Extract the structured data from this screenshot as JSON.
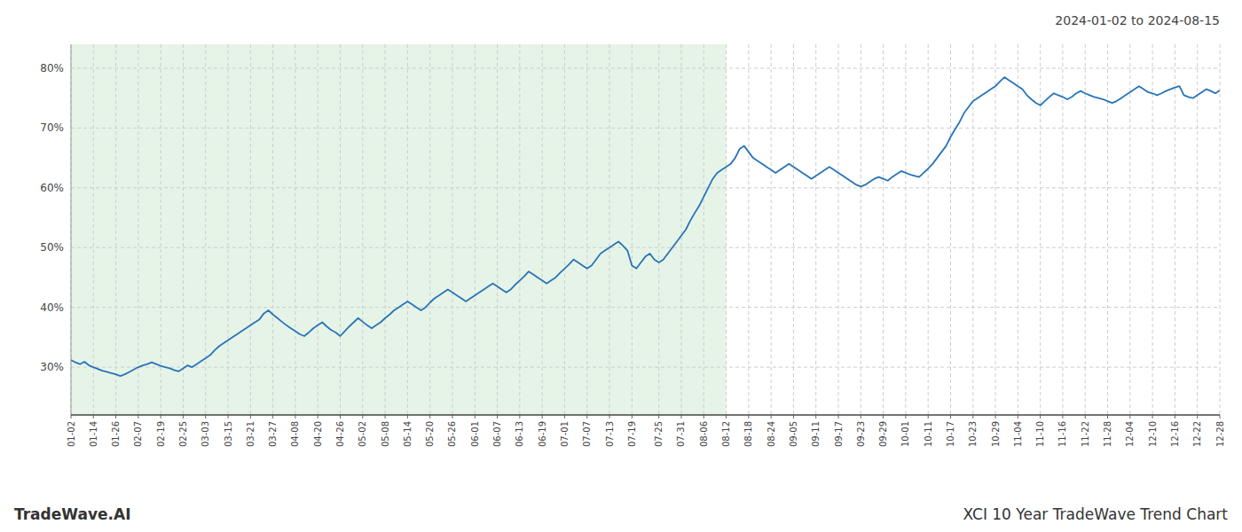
{
  "chart_data": {
    "type": "line",
    "title": "2024-01-02 to 2024-08-15",
    "annotations": [
      "TradeWave.AI",
      "XCI 10 Year TradeWave Trend Chart"
    ],
    "color": "#2874b8",
    "grid": true,
    "shaded_range": {
      "from": "01-02",
      "to": "08-12",
      "color": "#c8e6c9"
    },
    "ylim": [
      22,
      84
    ],
    "yticks": [
      {
        "value": 30,
        "label": "30%"
      },
      {
        "value": 40,
        "label": "40%"
      },
      {
        "value": 50,
        "label": "50%"
      },
      {
        "value": 60,
        "label": "60%"
      },
      {
        "value": 70,
        "label": "70%"
      },
      {
        "value": 80,
        "label": "80%"
      }
    ],
    "categories": [
      "01-02",
      null,
      null,
      null,
      null,
      "01-14",
      null,
      null,
      null,
      null,
      "01-26",
      null,
      null,
      null,
      null,
      "02-07",
      null,
      null,
      null,
      null,
      "02-19",
      null,
      null,
      null,
      null,
      "02-25",
      null,
      null,
      null,
      null,
      "03-03",
      null,
      null,
      null,
      null,
      "03-15",
      null,
      null,
      null,
      null,
      "03-21",
      null,
      null,
      null,
      null,
      "03-27",
      null,
      null,
      null,
      null,
      "04-08",
      null,
      null,
      null,
      null,
      "04-20",
      null,
      null,
      null,
      null,
      "04-26",
      null,
      null,
      null,
      null,
      "05-02",
      null,
      null,
      null,
      null,
      "05-08",
      null,
      null,
      null,
      null,
      "05-14",
      null,
      null,
      null,
      null,
      "05-20",
      null,
      null,
      null,
      null,
      "05-26",
      null,
      null,
      null,
      null,
      "06-01",
      null,
      null,
      null,
      null,
      "06-07",
      null,
      null,
      null,
      null,
      "06-13",
      null,
      null,
      null,
      null,
      "06-19",
      null,
      null,
      null,
      null,
      "07-01",
      null,
      null,
      null,
      null,
      "07-07",
      null,
      null,
      null,
      null,
      "07-13",
      null,
      null,
      null,
      null,
      "07-19",
      null,
      null,
      null,
      null,
      null,
      "07-25",
      null,
      null,
      null,
      null,
      "07-31",
      null,
      null,
      null,
      null,
      "08-06",
      null,
      null,
      null,
      null,
      "08-12",
      null,
      null,
      null,
      null,
      "08-18",
      null,
      null,
      null,
      null,
      "08-24",
      null,
      null,
      null,
      null,
      "09-05",
      null,
      null,
      null,
      null,
      "09-11",
      null,
      null,
      null,
      null,
      "09-17",
      null,
      null,
      null,
      null,
      "09-23",
      null,
      null,
      null,
      null,
      "09-29",
      null,
      null,
      null,
      null,
      "10-01",
      null,
      null,
      null,
      null,
      "10-11",
      null,
      null,
      null,
      null,
      "10-17",
      null,
      null,
      null,
      null,
      "10-23",
      null,
      null,
      null,
      null,
      "10-29",
      null,
      null,
      null,
      null,
      "11-04",
      null,
      null,
      null,
      null,
      "11-10",
      null,
      null,
      null,
      null,
      "11-16",
      null,
      null,
      null,
      null,
      "11-22",
      null,
      null,
      null,
      null,
      "11-28",
      null,
      null,
      null,
      null,
      "12-04",
      null,
      null,
      null,
      null,
      "12-10",
      null,
      null,
      null,
      null,
      "12-16",
      null,
      null,
      null,
      null,
      "12-22",
      null,
      null,
      null,
      null,
      "12-28"
    ],
    "values": [
      31.2,
      30.8,
      30.5,
      30.9,
      30.3,
      30.0,
      29.7,
      29.4,
      29.2,
      29.0,
      28.8,
      28.5,
      28.8,
      29.2,
      29.6,
      30.0,
      30.3,
      30.5,
      30.8,
      30.5,
      30.2,
      30.0,
      29.8,
      29.5,
      29.3,
      29.8,
      30.3,
      30.0,
      30.5,
      31.0,
      31.5,
      32.0,
      32.8,
      33.5,
      34.0,
      34.5,
      35.0,
      35.5,
      36.0,
      36.5,
      37.0,
      37.5,
      38.0,
      39.0,
      39.5,
      38.8,
      38.2,
      37.6,
      37.0,
      36.5,
      36.0,
      35.5,
      35.2,
      35.8,
      36.5,
      37.0,
      37.5,
      36.8,
      36.2,
      35.8,
      35.2,
      36.0,
      36.8,
      37.5,
      38.2,
      37.6,
      37.0,
      36.5,
      37.0,
      37.5,
      38.2,
      38.8,
      39.5,
      40.0,
      40.5,
      41.0,
      40.5,
      40.0,
      39.5,
      40.0,
      40.8,
      41.5,
      42.0,
      42.5,
      43.0,
      42.5,
      42.0,
      41.5,
      41.0,
      41.5,
      42.0,
      42.5,
      43.0,
      43.5,
      44.0,
      43.5,
      43.0,
      42.5,
      43.0,
      43.8,
      44.5,
      45.2,
      46.0,
      45.5,
      45.0,
      44.5,
      44.0,
      44.5,
      45.0,
      45.8,
      46.5,
      47.2,
      48.0,
      47.5,
      47.0,
      46.5,
      47.0,
      48.0,
      49.0,
      49.5,
      50.0,
      50.5,
      51.0,
      50.3,
      49.5,
      47.0,
      46.5,
      47.5,
      48.5,
      49.0,
      48.0,
      47.5,
      48.0,
      49.0,
      50.0,
      51.0,
      52.0,
      53.0,
      54.5,
      55.8,
      57.0,
      58.5,
      60.0,
      61.5,
      62.5,
      63.0,
      63.5,
      64.0,
      65.0,
      66.5,
      67.0,
      66.0,
      65.0,
      64.5,
      64.0,
      63.5,
      63.0,
      62.5,
      63.0,
      63.5,
      64.0,
      63.5,
      63.0,
      62.5,
      62.0,
      61.5,
      62.0,
      62.5,
      63.0,
      63.5,
      63.0,
      62.5,
      62.0,
      61.5,
      61.0,
      60.5,
      60.2,
      60.5,
      61.0,
      61.5,
      61.8,
      61.5,
      61.2,
      61.8,
      62.3,
      62.8,
      62.5,
      62.2,
      62.0,
      61.8,
      62.5,
      63.2,
      64.0,
      65.0,
      66.0,
      67.0,
      68.5,
      69.8,
      71.0,
      72.5,
      73.5,
      74.5,
      75.0,
      75.5,
      76.0,
      76.5,
      77.0,
      77.8,
      78.5,
      78.0,
      77.5,
      77.0,
      76.5,
      75.5,
      74.8,
      74.2,
      73.8,
      74.5,
      75.2,
      75.8,
      75.5,
      75.2,
      74.8,
      75.2,
      75.8,
      76.2,
      75.8,
      75.5,
      75.2,
      75.0,
      74.8,
      74.5,
      74.2,
      74.5,
      75.0,
      75.5,
      76.0,
      76.5,
      77.0,
      76.5,
      76.0,
      75.8,
      75.5,
      75.8,
      76.2,
      76.5,
      76.8,
      77.0,
      75.5,
      75.2,
      75.0,
      75.5,
      76.0,
      76.5,
      76.2,
      75.8,
      76.3
    ]
  }
}
